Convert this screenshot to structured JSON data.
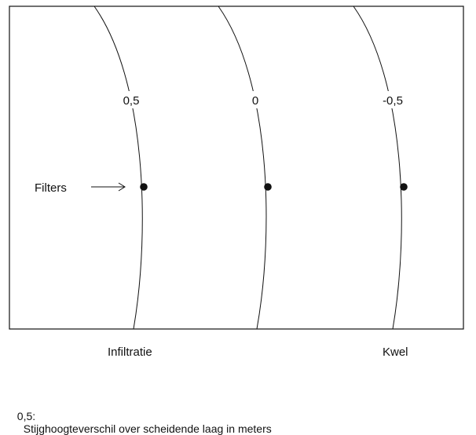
{
  "contours": [
    {
      "label": "0,5"
    },
    {
      "label": "0"
    },
    {
      "label": "-0,5"
    }
  ],
  "filters_label": "Filters",
  "bottom_labels": {
    "left": "Infiltratie",
    "right": "Kwel"
  },
  "legend": {
    "key": "0,5:",
    "text": "Stijghoogteverschil over scheidende laag in meters"
  },
  "colors": {
    "line": "#111111",
    "background": "#ffffff"
  }
}
